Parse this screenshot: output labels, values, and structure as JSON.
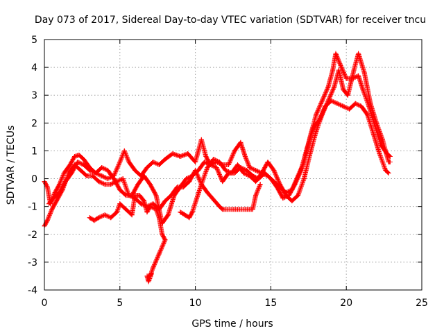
{
  "chart_data": {
    "type": "scatter",
    "title": "Day 073 of 2017, Sidereal Day-to-day VTEC variation (SDTVAR) for receiver tncu",
    "xlabel": "GPS time / hours",
    "ylabel": "SDTVAR / TECUs",
    "xlim": [
      0,
      25
    ],
    "ylim": [
      -4,
      5
    ],
    "xticks": [
      0,
      5,
      10,
      15,
      20,
      25
    ],
    "yticks": [
      -4,
      -3,
      -2,
      -1,
      0,
      1,
      2,
      3,
      4,
      5
    ],
    "xtick_labels": [
      "0",
      "5",
      "10",
      "15",
      "20",
      "25"
    ],
    "ytick_labels": [
      "-4",
      "-3",
      "-2",
      "-1",
      "0",
      "1",
      "2",
      "3",
      "4",
      "5"
    ],
    "grid": true,
    "marker": "plus",
    "color": "#ff0000",
    "series": [
      {
        "name": "trace-1",
        "points": [
          [
            0,
            -0.1
          ],
          [
            0.2,
            -0.3
          ],
          [
            0.4,
            -0.9
          ],
          [
            0.7,
            -0.5
          ],
          [
            1.0,
            -0.2
          ],
          [
            1.3,
            0.2
          ],
          [
            1.7,
            0.5
          ],
          [
            2.0,
            0.8
          ],
          [
            2.3,
            0.85
          ],
          [
            2.6,
            0.7
          ],
          [
            3.0,
            0.4
          ],
          [
            3.4,
            0.2
          ],
          [
            3.8,
            0.1
          ],
          [
            4.2,
            0.0
          ],
          [
            4.6,
            0.1
          ],
          [
            5.0,
            0.6
          ],
          [
            5.3,
            1.0
          ],
          [
            5.6,
            0.6
          ],
          [
            6.0,
            0.3
          ],
          [
            6.4,
            0.1
          ],
          [
            6.8,
            0.4
          ],
          [
            7.2,
            0.6
          ],
          [
            7.6,
            0.5
          ],
          [
            8.0,
            0.7
          ],
          [
            8.5,
            0.9
          ],
          [
            9.0,
            0.8
          ],
          [
            9.5,
            0.9
          ],
          [
            10.0,
            0.6
          ],
          [
            10.4,
            1.4
          ],
          [
            10.7,
            0.8
          ],
          [
            11.0,
            0.5
          ],
          [
            11.4,
            0.6
          ],
          [
            11.8,
            0.5
          ],
          [
            12.2,
            0.5
          ],
          [
            12.6,
            1.0
          ],
          [
            13.0,
            1.3
          ],
          [
            13.3,
            0.8
          ],
          [
            13.6,
            0.4
          ],
          [
            14.0,
            0.3
          ],
          [
            14.4,
            0.2
          ],
          [
            14.8,
            0.1
          ],
          [
            15.2,
            -0.1
          ],
          [
            15.6,
            -0.3
          ],
          [
            16.0,
            -0.5
          ],
          [
            16.4,
            -0.4
          ],
          [
            16.8,
            0.1
          ],
          [
            17.2,
            0.6
          ],
          [
            17.6,
            1.5
          ],
          [
            18.0,
            2.3
          ],
          [
            18.4,
            2.8
          ],
          [
            18.8,
            3.3
          ],
          [
            19.1,
            3.9
          ],
          [
            19.3,
            4.5
          ],
          [
            19.6,
            4.1
          ],
          [
            20.0,
            3.6
          ],
          [
            20.4,
            3.6
          ],
          [
            20.8,
            3.7
          ],
          [
            21.1,
            3.2
          ],
          [
            21.5,
            2.6
          ],
          [
            21.9,
            1.9
          ],
          [
            22.3,
            1.2
          ],
          [
            22.7,
            0.9
          ],
          [
            22.9,
            0.8
          ]
        ]
      },
      {
        "name": "trace-2",
        "points": [
          [
            0,
            -1.7
          ],
          [
            0.2,
            -1.5
          ],
          [
            0.5,
            -1.1
          ],
          [
            0.8,
            -0.8
          ],
          [
            1.2,
            -0.4
          ],
          [
            1.6,
            0.2
          ],
          [
            2.0,
            0.5
          ],
          [
            2.4,
            0.3
          ],
          [
            2.8,
            0.1
          ],
          [
            3.2,
            0.1
          ],
          [
            3.6,
            -0.1
          ],
          [
            4.0,
            -0.2
          ],
          [
            4.4,
            -0.2
          ],
          [
            4.8,
            -0.1
          ],
          [
            5.2,
            0.0
          ],
          [
            5.6,
            -0.6
          ],
          [
            6.0,
            -0.7
          ],
          [
            6.4,
            -0.9
          ],
          [
            6.8,
            -1.0
          ],
          [
            7.2,
            -0.9
          ],
          [
            7.6,
            -1.1
          ],
          [
            8.0,
            -0.8
          ],
          [
            8.4,
            -0.6
          ],
          [
            8.8,
            -0.3
          ],
          [
            9.2,
            -0.3
          ],
          [
            9.6,
            -0.1
          ],
          [
            10.0,
            0.3
          ],
          [
            10.4,
            -0.2
          ],
          [
            10.8,
            0.4
          ],
          [
            11.2,
            0.7
          ],
          [
            11.6,
            0.6
          ],
          [
            12.0,
            0.3
          ],
          [
            12.4,
            0.2
          ],
          [
            12.8,
            0.5
          ],
          [
            13.2,
            0.2
          ],
          [
            13.6,
            0.1
          ],
          [
            14.0,
            -0.1
          ],
          [
            14.4,
            0.2
          ],
          [
            14.8,
            0.6
          ],
          [
            15.2,
            0.3
          ],
          [
            15.6,
            -0.2
          ],
          [
            16.0,
            -0.6
          ],
          [
            16.4,
            -0.8
          ],
          [
            16.8,
            -0.6
          ],
          [
            17.2,
            0.0
          ],
          [
            17.6,
            0.9
          ],
          [
            18.0,
            1.7
          ],
          [
            18.4,
            2.3
          ],
          [
            18.8,
            2.8
          ],
          [
            19.2,
            3.3
          ],
          [
            19.5,
            3.9
          ],
          [
            19.8,
            3.2
          ],
          [
            20.1,
            3.0
          ],
          [
            20.5,
            3.9
          ],
          [
            20.8,
            4.5
          ],
          [
            21.2,
            3.8
          ],
          [
            21.6,
            2.7
          ],
          [
            22.0,
            2.0
          ],
          [
            22.4,
            1.4
          ],
          [
            22.8,
            0.6
          ],
          [
            22.9,
            0.6
          ]
        ]
      },
      {
        "name": "trace-3",
        "points": [
          [
            0.3,
            -0.9
          ],
          [
            0.6,
            -0.7
          ],
          [
            1.0,
            -0.5
          ],
          [
            1.4,
            -0.1
          ],
          [
            1.8,
            0.2
          ],
          [
            2.2,
            0.6
          ],
          [
            2.6,
            0.5
          ],
          [
            3.0,
            0.3
          ],
          [
            3.4,
            0.2
          ],
          [
            3.8,
            0.4
          ],
          [
            4.2,
            0.3
          ],
          [
            4.6,
            0.0
          ],
          [
            5.0,
            -0.4
          ],
          [
            5.4,
            -0.6
          ],
          [
            5.8,
            -0.6
          ],
          [
            6.2,
            -0.2
          ],
          [
            6.6,
            0.1
          ],
          [
            7.0,
            -0.2
          ],
          [
            7.4,
            -0.6
          ],
          [
            7.8,
            -1.6
          ],
          [
            8.2,
            -1.3
          ],
          [
            8.6,
            -0.6
          ],
          [
            9.0,
            -0.3
          ],
          [
            9.4,
            0.0
          ],
          [
            9.8,
            0.1
          ],
          [
            10.2,
            0.3
          ],
          [
            10.6,
            0.6
          ],
          [
            11.0,
            0.5
          ],
          [
            11.4,
            0.4
          ],
          [
            11.8,
            -0.1
          ],
          [
            12.2,
            0.2
          ],
          [
            12.6,
            0.2
          ],
          [
            13.0,
            0.4
          ],
          [
            13.4,
            0.3
          ],
          [
            13.8,
            0.1
          ],
          [
            14.2,
            0.0
          ],
          [
            14.6,
            0.2
          ],
          [
            15.0,
            0.0
          ],
          [
            15.4,
            -0.3
          ],
          [
            15.8,
            -0.7
          ],
          [
            16.2,
            -0.6
          ],
          [
            16.6,
            -0.2
          ],
          [
            17.0,
            0.3
          ],
          [
            17.4,
            1.1
          ],
          [
            17.8,
            1.8
          ],
          [
            18.2,
            2.1
          ],
          [
            18.6,
            2.6
          ],
          [
            19.0,
            2.8
          ],
          [
            19.4,
            2.7
          ],
          [
            19.8,
            2.6
          ],
          [
            20.2,
            2.5
          ],
          [
            20.6,
            2.7
          ],
          [
            21.0,
            2.6
          ],
          [
            21.4,
            2.3
          ],
          [
            21.8,
            1.6
          ],
          [
            22.2,
            0.9
          ],
          [
            22.6,
            0.3
          ],
          [
            22.8,
            0.2
          ]
        ]
      },
      {
        "name": "trace-4",
        "points": [
          [
            3.0,
            -1.4
          ],
          [
            3.3,
            -1.5
          ],
          [
            3.6,
            -1.4
          ],
          [
            4.0,
            -1.3
          ],
          [
            4.4,
            -1.4
          ],
          [
            4.8,
            -1.2
          ],
          [
            5.0,
            -0.9
          ],
          [
            5.4,
            -1.1
          ],
          [
            5.8,
            -1.3
          ],
          [
            6.0,
            -0.6
          ],
          [
            6.3,
            -0.6
          ],
          [
            6.6,
            -0.8
          ],
          [
            6.8,
            -1.2
          ],
          [
            7.0,
            -1.0
          ],
          [
            7.4,
            -1.1
          ],
          [
            7.6,
            -1.4
          ],
          [
            7.8,
            -2.0
          ],
          [
            8.0,
            -2.2
          ],
          [
            7.6,
            -2.7
          ],
          [
            7.2,
            -3.2
          ],
          [
            7.0,
            -3.5
          ],
          [
            6.8,
            -3.5
          ],
          [
            6.9,
            -3.7
          ],
          [
            7.1,
            -3.4
          ]
        ]
      },
      {
        "name": "trace-5",
        "points": [
          [
            9.0,
            -1.2
          ],
          [
            9.3,
            -1.3
          ],
          [
            9.6,
            -1.4
          ],
          [
            9.8,
            -1.2
          ],
          [
            10.4,
            -0.2
          ],
          [
            10.8,
            -0.5
          ],
          [
            11.6,
            -1.0
          ],
          [
            11.8,
            -1.1
          ],
          [
            13.8,
            -1.1
          ],
          [
            14.0,
            -0.6
          ],
          [
            14.3,
            -0.2
          ]
        ]
      }
    ]
  }
}
